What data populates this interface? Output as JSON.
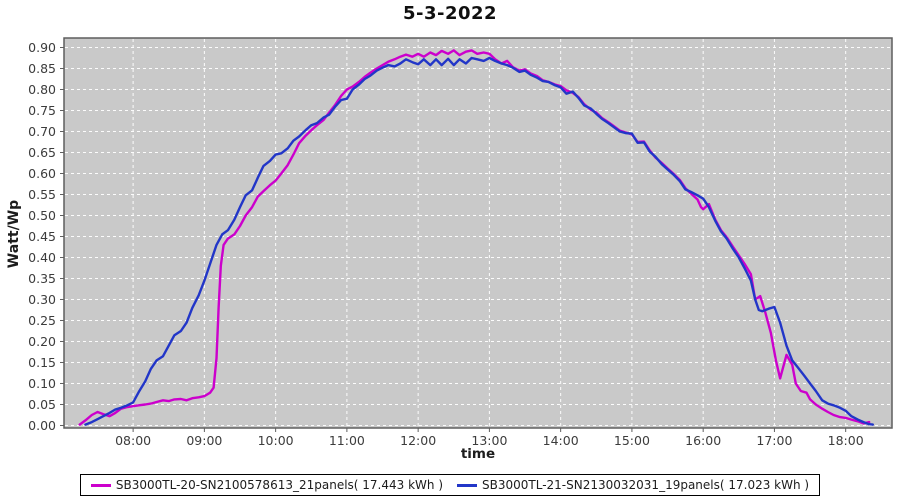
{
  "chart_data": {
    "type": "line",
    "title": "5-3-2022",
    "xlabel": "time",
    "ylabel": "Watt/Wp",
    "grid": true,
    "legend_position": "bottom-center",
    "plot_background": "#C9C9C9",
    "grid_color": "#FFFFFF",
    "plot_border_color": "#5E5E5E",
    "tick_label_color": "#3C3C3C",
    "xlim_hours": [
      7.03,
      18.65
    ],
    "ylim": [
      -0.006,
      0.9226
    ],
    "x_ticks": [
      {
        "hour": 8,
        "label": "08:00"
      },
      {
        "hour": 9,
        "label": "09:00"
      },
      {
        "hour": 10,
        "label": "10:00"
      },
      {
        "hour": 11,
        "label": "11:00"
      },
      {
        "hour": 12,
        "label": "12:00"
      },
      {
        "hour": 13,
        "label": "13:00"
      },
      {
        "hour": 14,
        "label": "14:00"
      },
      {
        "hour": 15,
        "label": "15:00"
      },
      {
        "hour": 16,
        "label": "16:00"
      },
      {
        "hour": 17,
        "label": "17:00"
      },
      {
        "hour": 18,
        "label": "18:00"
      }
    ],
    "y_ticks": [
      0.0,
      0.05,
      0.1,
      0.15,
      0.2,
      0.25,
      0.3,
      0.35,
      0.4,
      0.45,
      0.5,
      0.55,
      0.6,
      0.65,
      0.7,
      0.75,
      0.8,
      0.85,
      0.9
    ],
    "series": [
      {
        "name": "SB3000TL-20",
        "label": "SB3000TL-20-SN2100578613_21panels( 17.443 kWh )",
        "energy_kwh": 17.443,
        "color": "#CC00CC",
        "points": [
          [
            7.25,
            0.002
          ],
          [
            7.33,
            0.012
          ],
          [
            7.42,
            0.025
          ],
          [
            7.5,
            0.032
          ],
          [
            7.58,
            0.027
          ],
          [
            7.67,
            0.022
          ],
          [
            7.75,
            0.03
          ],
          [
            7.83,
            0.04
          ],
          [
            7.92,
            0.044
          ],
          [
            8.0,
            0.046
          ],
          [
            8.08,
            0.048
          ],
          [
            8.17,
            0.05
          ],
          [
            8.25,
            0.052
          ],
          [
            8.33,
            0.056
          ],
          [
            8.42,
            0.06
          ],
          [
            8.5,
            0.058
          ],
          [
            8.58,
            0.062
          ],
          [
            8.67,
            0.063
          ],
          [
            8.75,
            0.06
          ],
          [
            8.83,
            0.065
          ],
          [
            8.92,
            0.067
          ],
          [
            9.0,
            0.07
          ],
          [
            9.08,
            0.078
          ],
          [
            9.13,
            0.09
          ],
          [
            9.17,
            0.16
          ],
          [
            9.2,
            0.28
          ],
          [
            9.23,
            0.38
          ],
          [
            9.27,
            0.43
          ],
          [
            9.33,
            0.445
          ],
          [
            9.42,
            0.455
          ],
          [
            9.5,
            0.475
          ],
          [
            9.58,
            0.5
          ],
          [
            9.67,
            0.52
          ],
          [
            9.75,
            0.545
          ],
          [
            9.83,
            0.558
          ],
          [
            9.92,
            0.572
          ],
          [
            10.0,
            0.583
          ],
          [
            10.08,
            0.6
          ],
          [
            10.17,
            0.62
          ],
          [
            10.25,
            0.645
          ],
          [
            10.33,
            0.672
          ],
          [
            10.42,
            0.69
          ],
          [
            10.5,
            0.703
          ],
          [
            10.58,
            0.715
          ],
          [
            10.67,
            0.727
          ],
          [
            10.75,
            0.745
          ],
          [
            10.83,
            0.762
          ],
          [
            10.92,
            0.785
          ],
          [
            11.0,
            0.8
          ],
          [
            11.08,
            0.807
          ],
          [
            11.17,
            0.818
          ],
          [
            11.25,
            0.83
          ],
          [
            11.33,
            0.84
          ],
          [
            11.42,
            0.85
          ],
          [
            11.5,
            0.858
          ],
          [
            11.58,
            0.866
          ],
          [
            11.67,
            0.872
          ],
          [
            11.75,
            0.878
          ],
          [
            11.83,
            0.883
          ],
          [
            11.92,
            0.878
          ],
          [
            12.0,
            0.885
          ],
          [
            12.08,
            0.878
          ],
          [
            12.17,
            0.888
          ],
          [
            12.25,
            0.882
          ],
          [
            12.33,
            0.892
          ],
          [
            12.42,
            0.885
          ],
          [
            12.5,
            0.893
          ],
          [
            12.58,
            0.882
          ],
          [
            12.67,
            0.89
          ],
          [
            12.75,
            0.893
          ],
          [
            12.83,
            0.885
          ],
          [
            12.92,
            0.888
          ],
          [
            13.0,
            0.885
          ],
          [
            13.08,
            0.872
          ],
          [
            13.17,
            0.862
          ],
          [
            13.25,
            0.868
          ],
          [
            13.33,
            0.853
          ],
          [
            13.42,
            0.845
          ],
          [
            13.5,
            0.848
          ],
          [
            13.58,
            0.838
          ],
          [
            13.67,
            0.832
          ],
          [
            13.75,
            0.822
          ],
          [
            13.83,
            0.818
          ],
          [
            13.92,
            0.812
          ],
          [
            14.0,
            0.808
          ],
          [
            14.08,
            0.798
          ],
          [
            14.17,
            0.792
          ],
          [
            14.25,
            0.782
          ],
          [
            14.33,
            0.765
          ],
          [
            14.42,
            0.752
          ],
          [
            14.5,
            0.745
          ],
          [
            14.58,
            0.732
          ],
          [
            14.67,
            0.722
          ],
          [
            14.75,
            0.712
          ],
          [
            14.83,
            0.702
          ],
          [
            14.92,
            0.697
          ],
          [
            15.0,
            0.693
          ],
          [
            15.08,
            0.675
          ],
          [
            15.17,
            0.676
          ],
          [
            15.25,
            0.655
          ],
          [
            15.33,
            0.638
          ],
          [
            15.42,
            0.625
          ],
          [
            15.5,
            0.612
          ],
          [
            15.58,
            0.6
          ],
          [
            15.67,
            0.585
          ],
          [
            15.75,
            0.565
          ],
          [
            15.83,
            0.552
          ],
          [
            15.92,
            0.538
          ],
          [
            15.97,
            0.52
          ],
          [
            16.0,
            0.515
          ],
          [
            16.08,
            0.527
          ],
          [
            16.17,
            0.49
          ],
          [
            16.25,
            0.465
          ],
          [
            16.33,
            0.448
          ],
          [
            16.42,
            0.425
          ],
          [
            16.5,
            0.405
          ],
          [
            16.58,
            0.385
          ],
          [
            16.67,
            0.36
          ],
          [
            16.73,
            0.3
          ],
          [
            16.8,
            0.308
          ],
          [
            16.87,
            0.27
          ],
          [
            16.95,
            0.22
          ],
          [
            17.02,
            0.155
          ],
          [
            17.08,
            0.112
          ],
          [
            17.17,
            0.168
          ],
          [
            17.25,
            0.145
          ],
          [
            17.3,
            0.1
          ],
          [
            17.37,
            0.082
          ],
          [
            17.45,
            0.078
          ],
          [
            17.5,
            0.062
          ],
          [
            17.58,
            0.05
          ],
          [
            17.67,
            0.04
          ],
          [
            17.75,
            0.032
          ],
          [
            17.83,
            0.025
          ],
          [
            17.92,
            0.02
          ],
          [
            18.0,
            0.018
          ],
          [
            18.08,
            0.014
          ],
          [
            18.17,
            0.01
          ],
          [
            18.25,
            0.005
          ],
          [
            18.33,
            0.008
          ]
        ]
      },
      {
        "name": "SB3000TL-21",
        "label": "SB3000TL-21-SN2130032031_19panels( 17.023 kWh )",
        "energy_kwh": 17.023,
        "color": "#2236C8",
        "points": [
          [
            7.33,
            0.002
          ],
          [
            7.42,
            0.008
          ],
          [
            7.5,
            0.015
          ],
          [
            7.58,
            0.022
          ],
          [
            7.67,
            0.03
          ],
          [
            7.75,
            0.038
          ],
          [
            7.83,
            0.042
          ],
          [
            7.92,
            0.048
          ],
          [
            8.0,
            0.055
          ],
          [
            8.08,
            0.08
          ],
          [
            8.17,
            0.105
          ],
          [
            8.25,
            0.135
          ],
          [
            8.33,
            0.155
          ],
          [
            8.42,
            0.165
          ],
          [
            8.5,
            0.19
          ],
          [
            8.58,
            0.215
          ],
          [
            8.67,
            0.225
          ],
          [
            8.75,
            0.245
          ],
          [
            8.83,
            0.28
          ],
          [
            8.92,
            0.31
          ],
          [
            9.0,
            0.345
          ],
          [
            9.08,
            0.385
          ],
          [
            9.17,
            0.43
          ],
          [
            9.25,
            0.455
          ],
          [
            9.33,
            0.465
          ],
          [
            9.42,
            0.49
          ],
          [
            9.5,
            0.52
          ],
          [
            9.58,
            0.548
          ],
          [
            9.67,
            0.56
          ],
          [
            9.75,
            0.59
          ],
          [
            9.83,
            0.618
          ],
          [
            9.92,
            0.63
          ],
          [
            10.0,
            0.645
          ],
          [
            10.08,
            0.648
          ],
          [
            10.17,
            0.66
          ],
          [
            10.25,
            0.678
          ],
          [
            10.33,
            0.688
          ],
          [
            10.42,
            0.703
          ],
          [
            10.5,
            0.715
          ],
          [
            10.58,
            0.72
          ],
          [
            10.67,
            0.733
          ],
          [
            10.75,
            0.74
          ],
          [
            10.83,
            0.758
          ],
          [
            10.92,
            0.775
          ],
          [
            11.0,
            0.778
          ],
          [
            11.08,
            0.8
          ],
          [
            11.17,
            0.812
          ],
          [
            11.25,
            0.825
          ],
          [
            11.33,
            0.833
          ],
          [
            11.42,
            0.845
          ],
          [
            11.5,
            0.852
          ],
          [
            11.58,
            0.858
          ],
          [
            11.67,
            0.855
          ],
          [
            11.75,
            0.862
          ],
          [
            11.83,
            0.872
          ],
          [
            11.92,
            0.865
          ],
          [
            12.0,
            0.86
          ],
          [
            12.08,
            0.872
          ],
          [
            12.17,
            0.858
          ],
          [
            12.25,
            0.872
          ],
          [
            12.33,
            0.858
          ],
          [
            12.42,
            0.873
          ],
          [
            12.5,
            0.858
          ],
          [
            12.58,
            0.872
          ],
          [
            12.67,
            0.862
          ],
          [
            12.75,
            0.875
          ],
          [
            12.83,
            0.872
          ],
          [
            12.92,
            0.868
          ],
          [
            13.0,
            0.875
          ],
          [
            13.08,
            0.868
          ],
          [
            13.17,
            0.862
          ],
          [
            13.25,
            0.858
          ],
          [
            13.33,
            0.852
          ],
          [
            13.42,
            0.842
          ],
          [
            13.5,
            0.845
          ],
          [
            13.58,
            0.835
          ],
          [
            13.67,
            0.828
          ],
          [
            13.75,
            0.82
          ],
          [
            13.83,
            0.818
          ],
          [
            13.92,
            0.81
          ],
          [
            14.0,
            0.805
          ],
          [
            14.08,
            0.79
          ],
          [
            14.17,
            0.795
          ],
          [
            14.25,
            0.78
          ],
          [
            14.33,
            0.762
          ],
          [
            14.42,
            0.755
          ],
          [
            14.5,
            0.742
          ],
          [
            14.58,
            0.73
          ],
          [
            14.67,
            0.72
          ],
          [
            14.75,
            0.71
          ],
          [
            14.83,
            0.7
          ],
          [
            14.92,
            0.696
          ],
          [
            15.0,
            0.695
          ],
          [
            15.08,
            0.673
          ],
          [
            15.17,
            0.674
          ],
          [
            15.25,
            0.652
          ],
          [
            15.33,
            0.64
          ],
          [
            15.42,
            0.622
          ],
          [
            15.5,
            0.61
          ],
          [
            15.58,
            0.598
          ],
          [
            15.67,
            0.582
          ],
          [
            15.75,
            0.562
          ],
          [
            15.83,
            0.556
          ],
          [
            15.92,
            0.548
          ],
          [
            16.0,
            0.54
          ],
          [
            16.08,
            0.52
          ],
          [
            16.17,
            0.487
          ],
          [
            16.25,
            0.462
          ],
          [
            16.33,
            0.445
          ],
          [
            16.42,
            0.42
          ],
          [
            16.5,
            0.4
          ],
          [
            16.58,
            0.375
          ],
          [
            16.67,
            0.345
          ],
          [
            16.73,
            0.3
          ],
          [
            16.78,
            0.275
          ],
          [
            16.83,
            0.272
          ],
          [
            16.92,
            0.278
          ],
          [
            17.0,
            0.282
          ],
          [
            17.08,
            0.245
          ],
          [
            17.17,
            0.19
          ],
          [
            17.25,
            0.155
          ],
          [
            17.33,
            0.138
          ],
          [
            17.42,
            0.118
          ],
          [
            17.5,
            0.1
          ],
          [
            17.58,
            0.082
          ],
          [
            17.67,
            0.06
          ],
          [
            17.75,
            0.052
          ],
          [
            17.83,
            0.048
          ],
          [
            17.92,
            0.042
          ],
          [
            18.0,
            0.035
          ],
          [
            18.08,
            0.022
          ],
          [
            18.17,
            0.014
          ],
          [
            18.25,
            0.008
          ],
          [
            18.33,
            0.003
          ],
          [
            18.38,
            0.002
          ]
        ]
      }
    ]
  }
}
